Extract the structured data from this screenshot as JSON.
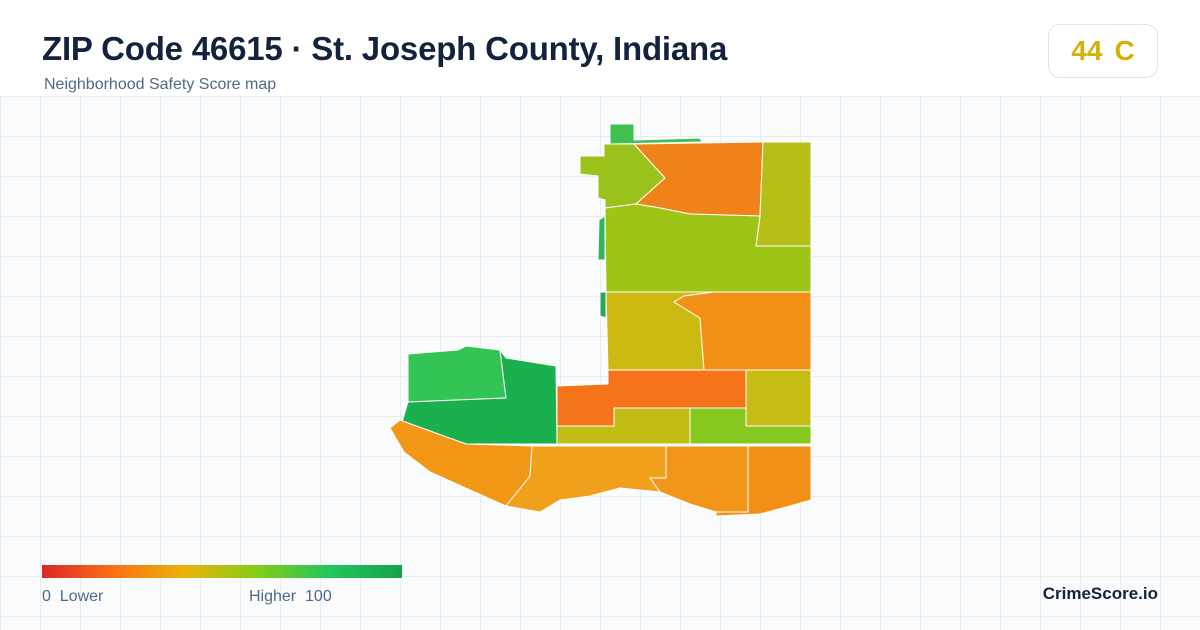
{
  "header": {
    "title": "ZIP Code 46615 · St. Joseph County, Indiana",
    "subtitle": "Neighborhood Safety Score map"
  },
  "score_badge": {
    "score": "44",
    "grade": "C",
    "grade_color": "#d4b106"
  },
  "legend": {
    "min_value": "0",
    "min_label": "Lower",
    "max_label": "Higher",
    "max_value": "100",
    "scale_colors": [
      "#dc2626",
      "#f97316",
      "#eab308",
      "#84cc16",
      "#22c55e",
      "#16a34a"
    ]
  },
  "brand": "CrimeScore.io",
  "map": {
    "region_colors": {
      "north-tab": "#3fc14f",
      "northwest-a": "#9bc21a",
      "north-center": "#f0821a",
      "northeast-strip": "#b5bf16",
      "upper-middle": "#9ec416",
      "middle-left": "#ccba12",
      "middle-right": "#f29015",
      "center-band": "#f57319",
      "center-right": "#c6bd14",
      "west-upper": "#34c355",
      "west-main": "#1bb04e",
      "south-mid-strip": "#c3bc14",
      "south-green": "#86c81e",
      "southwest-curve": "#f29616",
      "south-center": "#f0a01a",
      "south-east-a": "#f2961a",
      "south-east-b": "#f29016",
      "sliver-a": "#2fb65a",
      "sliver-b": "#26a85a"
    }
  }
}
